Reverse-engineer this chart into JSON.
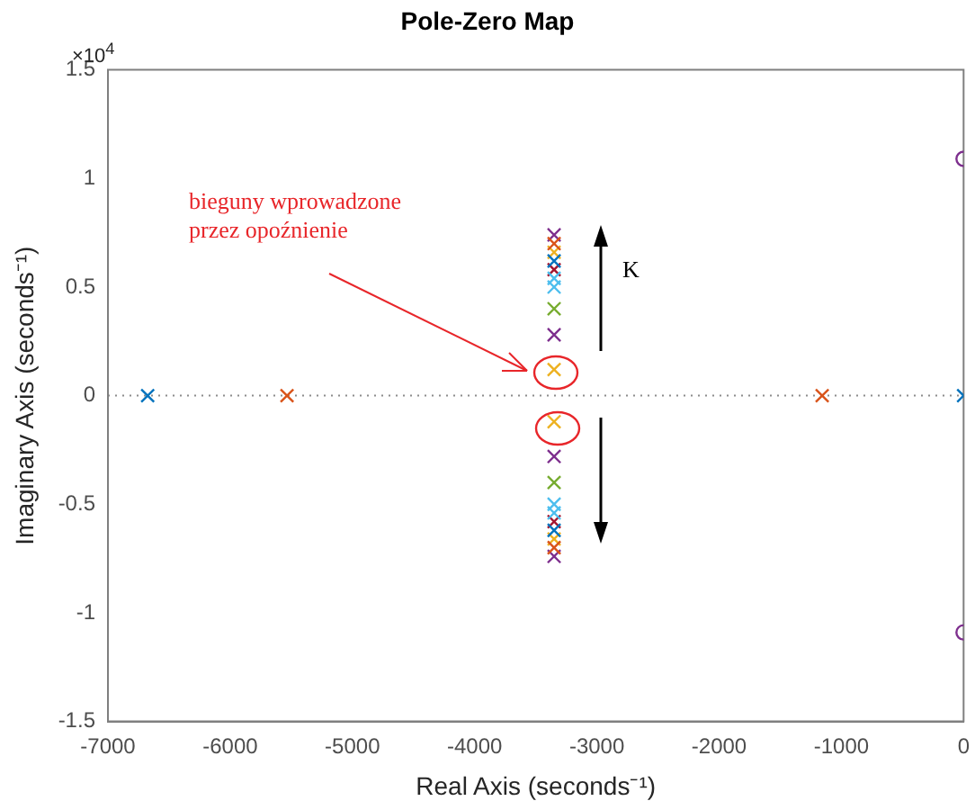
{
  "chart_data": {
    "type": "scatter",
    "title": "Pole-Zero Map",
    "xlabel": "Real Axis (seconds⁻¹)",
    "ylabel": "Imaginary Axis (seconds⁻¹)",
    "annotations": [
      "×10$^{4}$",
      "bieguny wprowadzone\nprzez opoźnienie",
      "K"
    ],
    "marker": "cross",
    "grid": false,
    "legend": false,
    "xlim": [
      -7000,
      0
    ],
    "xticks": [
      -7000,
      -6000,
      -5000,
      -4000,
      -3000,
      -2000,
      -1000,
      0
    ],
    "ylim": [
      -1.5,
      1.5
    ],
    "yticks": [
      -1.5,
      -1,
      -0.5,
      0,
      0.5,
      1,
      1.5
    ],
    "ref_lines": [
      {
        "axis": "y",
        "value": 0,
        "color": "#8c8c8c",
        "line_style": "dotted"
      }
    ],
    "series": [
      {
        "color": "#0072bd",
        "x": [
          -6675,
          -3350,
          -3350,
          0
        ],
        "values": [
          0,
          0.62,
          -0.62,
          0
        ]
      },
      {
        "color": "#d95319",
        "x": [
          -5535,
          -1157,
          -3350,
          -3350
        ],
        "values": [
          0,
          0,
          0.7,
          -0.7
        ]
      },
      {
        "color": "#edb120",
        "x": [
          -3350,
          -3350,
          -3350,
          -3350
        ],
        "values": [
          0.66,
          0.12,
          -0.12,
          -0.66
        ]
      },
      {
        "color": "#7e2f8e",
        "x": [
          -3350,
          -3350,
          -3350,
          -3350
        ],
        "values": [
          0.74,
          0.28,
          -0.28,
          -0.74
        ]
      },
      {
        "color": "#77ac30",
        "x": [
          -3350,
          -3350
        ],
        "values": [
          0.4,
          -0.4
        ]
      },
      {
        "color": "#4dbeee",
        "x": [
          -3350,
          -3350,
          -3350,
          -3350
        ],
        "values": [
          0.54,
          0.5,
          -0.5,
          -0.54
        ]
      },
      {
        "color": "#a2142f",
        "x": [
          -3350,
          -3350
        ],
        "values": [
          0.58,
          -0.58
        ]
      },
      {
        "color": "#7e2f8e",
        "marker": "circle",
        "x": [
          0,
          0
        ],
        "values": [
          1.09,
          -1.09
        ]
      }
    ]
  }
}
